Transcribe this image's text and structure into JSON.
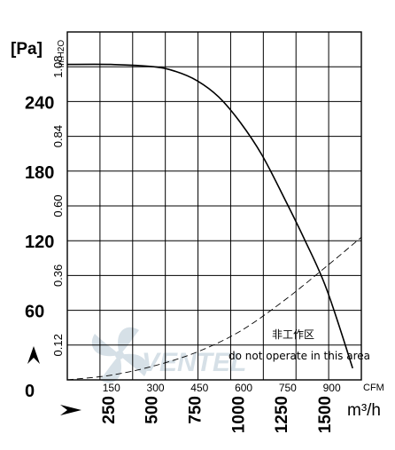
{
  "chart_data": {
    "type": "line",
    "title": "",
    "y_unit_primary": "[Pa]",
    "y_unit_secondary": "in.H2O",
    "x_unit_primary": "m³/h",
    "x_unit_secondary": "CFM",
    "ylim_pa": [
      0,
      300
    ],
    "xlim_m3h": [
      0,
      1700
    ],
    "grid": true,
    "pa_ticks": [
      "0",
      "60",
      "120",
      "180",
      "240"
    ],
    "inh2o_ticks": [
      "0.12",
      "0.36",
      "0.60",
      "0.84",
      "1.08"
    ],
    "cfm_ticks": [
      "150",
      "300",
      "450",
      "600",
      "750",
      "900"
    ],
    "m3h_ticks": [
      "250",
      "500",
      "750",
      "1000",
      "1250",
      "1500"
    ],
    "series": [
      {
        "style": "solid",
        "x": [
          0,
          250,
          500,
          625,
          750,
          875,
          1000,
          1125,
          1250,
          1375,
          1500,
          1650
        ],
        "y": [
          272,
          272,
          270,
          266,
          258,
          244,
          222,
          194,
          158,
          120,
          78,
          10
        ]
      },
      {
        "style": "dashed",
        "x": [
          0,
          250,
          500,
          750,
          1000,
          1250,
          1500,
          1700
        ],
        "y": [
          0,
          4,
          12,
          24,
          42,
          68,
          98,
          123
        ]
      }
    ],
    "annotation_cn": "非工作区",
    "annotation_en": "do not operate in this area",
    "watermark": "VENTEL",
    "axis_arrows": [
      "up-arrow",
      "right-arrow"
    ]
  }
}
